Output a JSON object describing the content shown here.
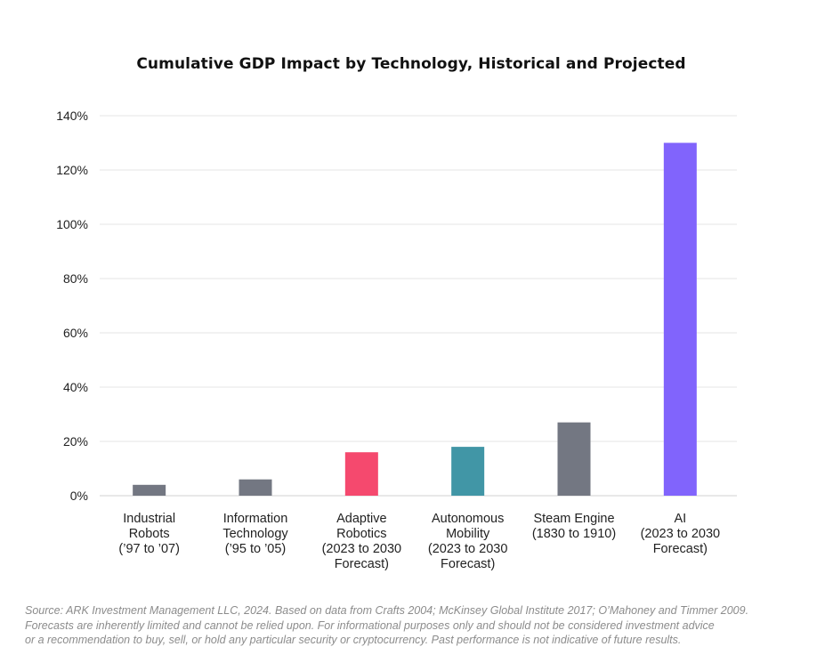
{
  "chart_data": {
    "type": "bar",
    "title": "Cumulative GDP Impact by Technology, Historical and Projected",
    "xlabel": "",
    "ylabel": "",
    "ylim": [
      0,
      140
    ],
    "y_ticks": [
      0,
      20,
      40,
      60,
      80,
      100,
      120,
      140
    ],
    "y_tick_labels": [
      "0%",
      "20%",
      "40%",
      "60%",
      "80%",
      "100%",
      "120%",
      "140%"
    ],
    "grid": true,
    "legend": "none",
    "categories": [
      [
        "Industrial",
        "Robots",
        "(’97 to ’07)"
      ],
      [
        "Information",
        "Technology",
        "(’95 to ’05)"
      ],
      [
        "Adaptive",
        "Robotics",
        "(2023 to 2030",
        "Forecast)"
      ],
      [
        "Autonomous",
        "Mobility",
        "(2023 to 2030",
        "Forecast)"
      ],
      [
        "Steam Engine",
        "(1830 to 1910)"
      ],
      [
        "AI",
        "(2023 to 2030",
        "Forecast)"
      ]
    ],
    "values": [
      4,
      6,
      16,
      18,
      27,
      130
    ],
    "colors": [
      "#737782",
      "#737782",
      "#f5496e",
      "#4196a6",
      "#737782",
      "#8164fc"
    ]
  },
  "footnote": {
    "line1": "Source: ARK Investment Management LLC, 2024. Based on data from Crafts 2004; McKinsey Global Institute 2017; O’Mahoney and Timmer 2009.",
    "line2": "Forecasts are inherently limited and cannot be relied upon. For informational purposes only and should not be considered investment advice",
    "line3": "or a recommendation to buy, sell, or hold any particular security or cryptocurrency. Past performance is not indicative of future results."
  }
}
